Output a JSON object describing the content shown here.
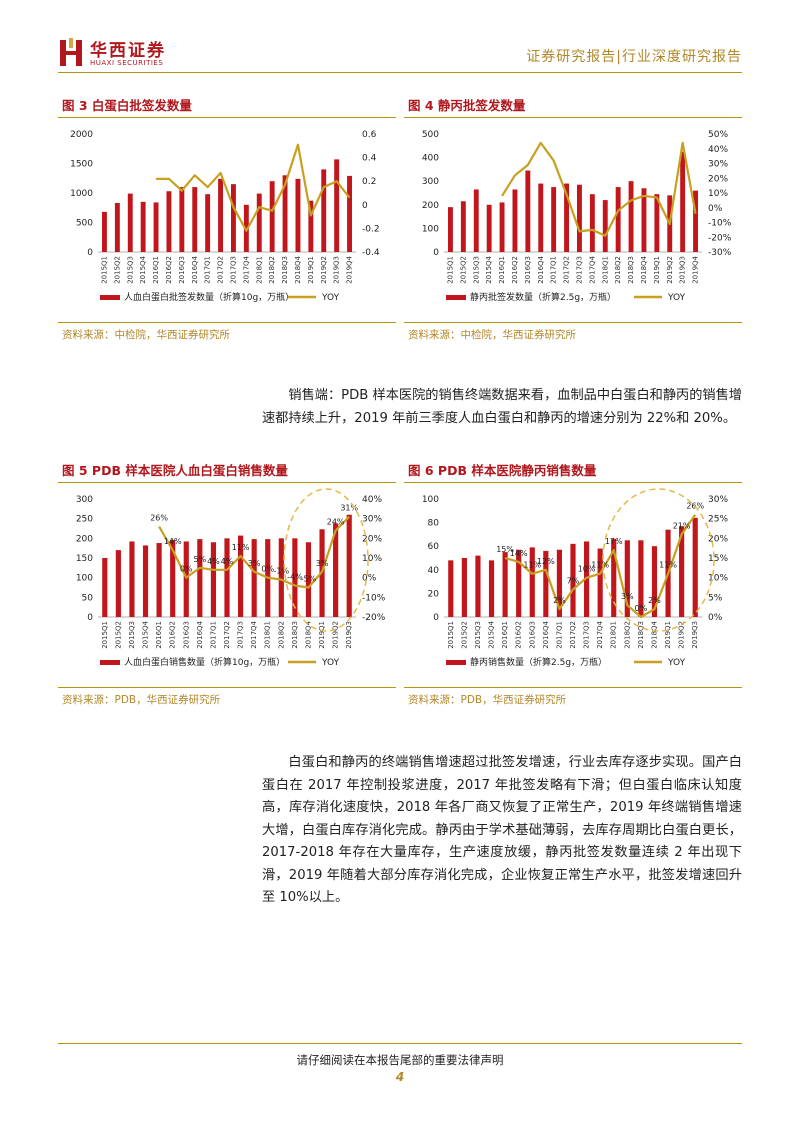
{
  "header": {
    "logo_cn": "华西证券",
    "logo_en": "HUAXI SECURITIES",
    "report_type": "证券研究报告|行业深度研究报告"
  },
  "colors": {
    "bar": "#c0161c",
    "line": "#c8a020",
    "accent": "#b2872a",
    "title": "#b1171d",
    "circle": "#e6b84a"
  },
  "figures": [
    {
      "title": "图 3 白蛋白批签发数量",
      "source": "资料来源：中检院，华西证券研究所",
      "legend_bar": "人血白蛋白批签发数量（折算10g，万瓶）",
      "legend_line": "YOY",
      "chart_data": {
        "type": "bar",
        "categories": [
          "2015Q1",
          "2015Q2",
          "2015Q3",
          "2015Q4",
          "2016Q1",
          "2016Q2",
          "2016Q3",
          "2016Q4",
          "2017Q1",
          "2017Q2",
          "2017Q3",
          "2017Q4",
          "2018Q1",
          "2018Q2",
          "2018Q3",
          "2018Q4",
          "2019Q1",
          "2019Q2",
          "2019Q3",
          "2019Q4"
        ],
        "series": [
          {
            "name": "人血白蛋白批签发数量（折算10g，万瓶）",
            "type": "bar",
            "axis": "left",
            "values": [
              680,
              830,
              990,
              850,
              840,
              1030,
              1100,
              1100,
              980,
              1240,
              1150,
              800,
              990,
              1200,
              1300,
              1240,
              870,
              1400,
              1570,
              1290
            ]
          },
          {
            "name": "YOY",
            "type": "line",
            "axis": "right",
            "values": [
              null,
              null,
              null,
              null,
              0.22,
              0.22,
              0.12,
              0.25,
              0.15,
              0.27,
              -0.02,
              -0.22,
              -0.02,
              -0.05,
              0.17,
              0.51,
              -0.09,
              0.15,
              0.2,
              0.06
            ]
          }
        ],
        "ylim_left": [
          0,
          2000
        ],
        "yticks_left": [
          "0",
          "500",
          "1000",
          "1500",
          "2000"
        ],
        "ylim_right": [
          -0.4,
          0.6
        ],
        "yticks_right": [
          "-0.4",
          "-0.2",
          "0",
          "0.2",
          "0.4",
          "0.6"
        ]
      }
    },
    {
      "title": "图 4 静丙批签发数量",
      "source": "资料来源：中检院，华西证券研究所",
      "legend_bar": "静丙批签发数量（折算2.5g，万瓶）",
      "legend_line": "YOY",
      "chart_data": {
        "type": "bar",
        "categories": [
          "2015Q1",
          "2015Q2",
          "2015Q3",
          "2015Q4",
          "2016Q1",
          "2016Q2",
          "2016Q3",
          "2016Q4",
          "2017Q1",
          "2017Q2",
          "2017Q3",
          "2017Q4",
          "2018Q1",
          "2018Q2",
          "2018Q3",
          "2018Q4",
          "2019Q1",
          "2019Q2",
          "2019Q3",
          "2019Q4"
        ],
        "series": [
          {
            "name": "静丙批签发数量（折算2.5g，万瓶）",
            "type": "bar",
            "axis": "left",
            "values": [
              190,
              215,
              265,
              200,
              210,
              265,
              345,
              290,
              275,
              290,
              285,
              245,
              220,
              275,
              300,
              270,
              245,
              240,
              425,
              260
            ]
          },
          {
            "name": "YOY",
            "type": "line",
            "axis": "right",
            "values": [
              null,
              null,
              null,
              null,
              0.08,
              0.22,
              0.29,
              0.44,
              0.32,
              0.09,
              -0.16,
              -0.15,
              -0.19,
              -0.02,
              0.05,
              0.08,
              0.07,
              -0.11,
              0.44,
              -0.04
            ]
          }
        ],
        "ylim_left": [
          0,
          500
        ],
        "yticks_left": [
          "0",
          "100",
          "200",
          "300",
          "400",
          "500"
        ],
        "ylim_right": [
          -0.3,
          0.5
        ],
        "yticks_right": [
          "-30%",
          "-20%",
          "-10%",
          "0%",
          "10%",
          "20%",
          "30%",
          "40%",
          "50%"
        ]
      }
    },
    {
      "title": "图 5 PDB 样本医院人血白蛋白销售数量",
      "source": "资料来源：PDB，华西证券研究所",
      "legend_bar": "人血白蛋白销售数量（折算10g，万瓶）",
      "legend_line": "YOY",
      "chart_data": {
        "type": "bar",
        "categories": [
          "2015Q1",
          "2015Q2",
          "2015Q3",
          "2015Q4",
          "2016Q1",
          "2016Q2",
          "2016Q3",
          "2016Q4",
          "2017Q1",
          "2017Q2",
          "2017Q3",
          "2017Q4",
          "2018Q1",
          "2018Q2",
          "2018Q3",
          "2018Q4",
          "2019Q1",
          "2019Q2",
          "2019Q3"
        ],
        "series": [
          {
            "name": "人血白蛋白销售数量（折算10g，万瓶）",
            "type": "bar",
            "axis": "left",
            "values": [
              150,
              170,
              192,
              182,
              188,
              196,
              192,
              198,
              190,
              200,
              207,
              198,
              198,
              200,
              200,
              190,
              223,
              238,
              260
            ]
          },
          {
            "name": "YOY",
            "type": "line",
            "axis": "right",
            "values": [
              null,
              null,
              null,
              null,
              0.26,
              0.14,
              0.0,
              0.05,
              0.04,
              0.04,
              0.11,
              0.03,
              0.0,
              -0.01,
              -0.04,
              -0.05,
              0.03,
              0.24,
              0.31
            ]
          }
        ],
        "data_labels": [
          "",
          "",
          "",
          "",
          "26%",
          "14%",
          "0%",
          "5%",
          "4%",
          "4%",
          "11%",
          "3%",
          "0%",
          "-1%",
          "-4%",
          "-5%",
          "3%",
          "24%",
          "31%"
        ],
        "ylim_left": [
          0,
          300
        ],
        "yticks_left": [
          "0",
          "50",
          "100",
          "150",
          "200",
          "250",
          "300"
        ],
        "ylim_right": [
          -0.2,
          0.4
        ],
        "yticks_right": [
          "-20%",
          "-10%",
          "0%",
          "10%",
          "20%",
          "30%",
          "40%"
        ],
        "highlight_from": 14
      }
    },
    {
      "title": "图 6 PDB 样本医院静丙销售数量",
      "source": "资料来源：PDB，华西证券研究所",
      "legend_bar": "静丙销售数量（折算2.5g，万瓶）",
      "legend_line": "YOY",
      "chart_data": {
        "type": "bar",
        "categories": [
          "2015Q1",
          "2015Q2",
          "2015Q3",
          "2015Q4",
          "2016Q1",
          "2016Q2",
          "2016Q3",
          "2016Q4",
          "2017Q1",
          "2017Q2",
          "2017Q3",
          "2017Q4",
          "2018Q1",
          "2018Q2",
          "2018Q3",
          "2018Q4",
          "2019Q1",
          "2019Q2",
          "2019Q3"
        ],
        "series": [
          {
            "name": "静丙销售数量（折算2.5g，万瓶）",
            "type": "bar",
            "axis": "left",
            "values": [
              48,
              50,
              52,
              48,
              55,
              57,
              59,
              56,
              57,
              62,
              64,
              58,
              66,
              65,
              65,
              60,
              74,
              77,
              84
            ]
          },
          {
            "name": "YOY",
            "type": "line",
            "axis": "right",
            "values": [
              null,
              null,
              null,
              null,
              0.15,
              0.14,
              0.11,
              0.12,
              0.02,
              0.07,
              0.1,
              0.11,
              0.17,
              0.03,
              0.0,
              0.02,
              0.11,
              0.21,
              0.26
            ]
          }
        ],
        "data_labels": [
          "",
          "",
          "",
          "",
          "15%",
          "14%",
          "11%",
          "12%",
          "2%",
          "7%",
          "10%",
          "11%",
          "17%",
          "3%",
          "0%",
          "2%",
          "11%",
          "21%",
          "26%"
        ],
        "ylim_left": [
          0,
          100
        ],
        "yticks_left": [
          "0",
          "20",
          "40",
          "60",
          "80",
          "100"
        ],
        "ylim_right": [
          0,
          0.3
        ],
        "yticks_right": [
          "0%",
          "5%",
          "10%",
          "15%",
          "20%",
          "25%",
          "30%"
        ],
        "highlight_from": 12
      }
    }
  ],
  "paragraphs": {
    "p1": "销售端：PDB 样本医院的销售终端数据来看，血制品中白蛋白和静丙的销售增速都持续上升，2019 年前三季度人血白蛋白和静丙的增速分别为 22%和 20%。",
    "p2": "白蛋白和静丙的终端销售增速超过批签发增速，行业去库存逐步实现。国产白蛋白在 2017 年控制投浆进度，2017 年批签发略有下滑；但白蛋白临床认知度高，库存消化速度快，2018 年各厂商又恢复了正常生产，2019 年终端销售增速大增，白蛋白库存消化完成。静丙由于学术基础薄弱，去库存周期比白蛋白更长，2017-2018 年存在大量库存，生产速度放缓，静丙批签发数量连续 2 年出现下滑，2019 年随着大部分库存消化完成，企业恢复正常生产水平，批签发增速回升至 10%以上。"
  },
  "footer": {
    "disclaimer": "请仔细阅读在本报告尾部的重要法律声明",
    "page": "4"
  }
}
